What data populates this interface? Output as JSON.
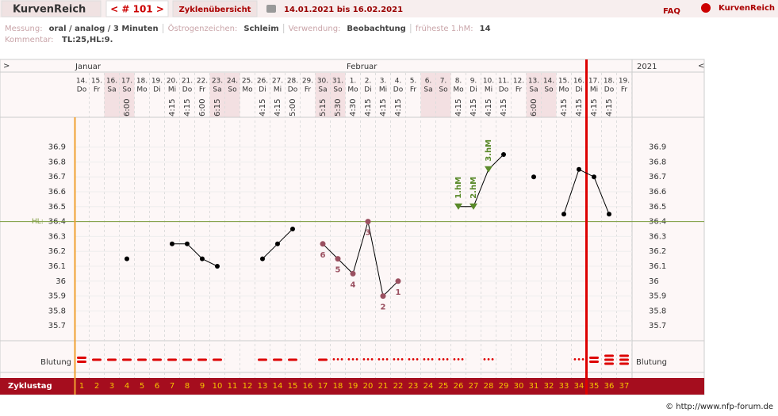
{
  "header": {
    "app_title": "KurvenReich",
    "cycle_nav": "< # 101 >",
    "overview": "Zyklenübersicht",
    "date_range": "14.01.2021 bis 16.02.2021",
    "faq": "FAQ",
    "logo": "KurvenReich"
  },
  "info": {
    "items": [
      {
        "label": "Messung:",
        "value": "oral / analog / 3 Minuten"
      },
      {
        "label": "Östrogenzeichen:",
        "value": "Schleim"
      },
      {
        "label": "Verwendung:",
        "value": "Beobachtung"
      },
      {
        "label": "früheste 1.hM:",
        "value": "14"
      }
    ],
    "comment_label": "Kommentar:",
    "comment": "TL:25,HL:9."
  },
  "chart_data": {
    "type": "line",
    "nav_left": ">",
    "nav_right": "<",
    "year": "2021",
    "month_labels": [
      "Januar",
      null,
      null,
      null,
      null,
      null,
      null,
      null,
      null,
      null,
      null,
      null,
      null,
      null,
      null,
      null,
      null,
      null,
      "Februar",
      null,
      null,
      null,
      null,
      null,
      null,
      null,
      null,
      null,
      null,
      null,
      null,
      null,
      null,
      null,
      null,
      null,
      null
    ],
    "dates": [
      "14.",
      "15.",
      "16.",
      "17.",
      "18.",
      "19.",
      "20.",
      "21.",
      "22.",
      "23.",
      "24.",
      "25.",
      "26.",
      "27.",
      "28.",
      "29.",
      "30.",
      "31.",
      "1.",
      "2.",
      "3.",
      "4.",
      "5.",
      "6.",
      "7.",
      "8.",
      "9.",
      "10.",
      "11.",
      "12.",
      "13.",
      "14.",
      "15.",
      "16.",
      "17.",
      "18.",
      "19."
    ],
    "weekdays": [
      "Do",
      "Fr",
      "Sa",
      "So",
      "Mo",
      "Di",
      "Mi",
      "Do",
      "Fr",
      "Sa",
      "So",
      "Mo",
      "Di",
      "Mi",
      "Do",
      "Fr",
      "Sa",
      "So",
      "Mo",
      "Di",
      "Mi",
      "Do",
      "Fr",
      "Sa",
      "So",
      "Mo",
      "Di",
      "Mi",
      "Do",
      "Fr",
      "Sa",
      "So",
      "Mo",
      "Di",
      "Mi",
      "Do",
      "Fr"
    ],
    "times": [
      null,
      null,
      null,
      "6:00",
      null,
      null,
      "4:15",
      "4:15",
      "6:00",
      "6:15",
      null,
      null,
      "4:15",
      "4:15",
      "5:00",
      null,
      "5:15",
      "5:30",
      "4:30",
      "4:15",
      "4:15",
      "4:15",
      null,
      null,
      null,
      "4:15",
      "4:15",
      "4:15",
      "4:15",
      null,
      "6:00",
      null,
      "4:15",
      "4:15",
      "4:15",
      "4:15",
      null
    ],
    "x": [
      1,
      2,
      3,
      4,
      5,
      6,
      7,
      8,
      9,
      10,
      11,
      12,
      13,
      14,
      15,
      16,
      17,
      18,
      19,
      20,
      21,
      22,
      23,
      24,
      25,
      26,
      27,
      28,
      29,
      30,
      31,
      32,
      33,
      34,
      35,
      36,
      37
    ],
    "values": [
      null,
      null,
      null,
      36.15,
      null,
      null,
      36.25,
      36.25,
      36.15,
      36.1,
      null,
      null,
      36.15,
      36.25,
      36.35,
      null,
      36.25,
      36.15,
      36.05,
      36.4,
      35.9,
      36.0,
      null,
      null,
      null,
      36.5,
      36.5,
      36.75,
      36.85,
      null,
      36.7,
      null,
      36.45,
      36.75,
      36.7,
      36.45,
      null
    ],
    "low_labels": [
      null,
      null,
      null,
      null,
      null,
      null,
      null,
      null,
      null,
      null,
      null,
      null,
      null,
      null,
      null,
      null,
      6,
      5,
      4,
      3,
      2,
      1,
      null,
      null,
      null,
      null,
      null,
      null,
      null,
      null,
      null,
      null,
      null,
      null,
      null,
      null,
      null
    ],
    "high_labels": [
      null,
      null,
      null,
      null,
      null,
      null,
      null,
      null,
      null,
      null,
      null,
      null,
      null,
      null,
      null,
      null,
      null,
      null,
      null,
      null,
      null,
      null,
      null,
      null,
      null,
      "1.hM",
      "2.hM",
      "3.hM",
      null,
      null,
      null,
      null,
      null,
      null,
      null,
      null,
      null
    ],
    "ylim": [
      35.6,
      37.1
    ],
    "yticks": [
      35.7,
      35.8,
      35.9,
      36,
      36.1,
      36.2,
      36.3,
      36.4,
      36.5,
      36.6,
      36.7,
      36.8,
      36.9
    ],
    "coverline": {
      "label": "HL:",
      "value": 36.4,
      "color": "#7a9a3a"
    },
    "line_color": "#000",
    "low_color": "#9a5060",
    "high_color": "#5a8a2a",
    "cycle_break_after": 34,
    "bleeding_label": "Blutung",
    "bleeding": [
      3,
      2,
      2,
      2,
      2,
      2,
      2,
      2,
      2,
      2,
      0,
      0,
      2,
      2,
      2,
      0,
      2,
      1,
      1,
      1,
      1,
      1,
      1,
      1,
      1,
      1,
      0,
      1,
      0,
      0,
      0,
      0,
      0,
      1,
      3,
      4,
      4
    ],
    "cycle_label": "Zyklustag"
  },
  "footer": "© http://www.nfp-forum.de"
}
